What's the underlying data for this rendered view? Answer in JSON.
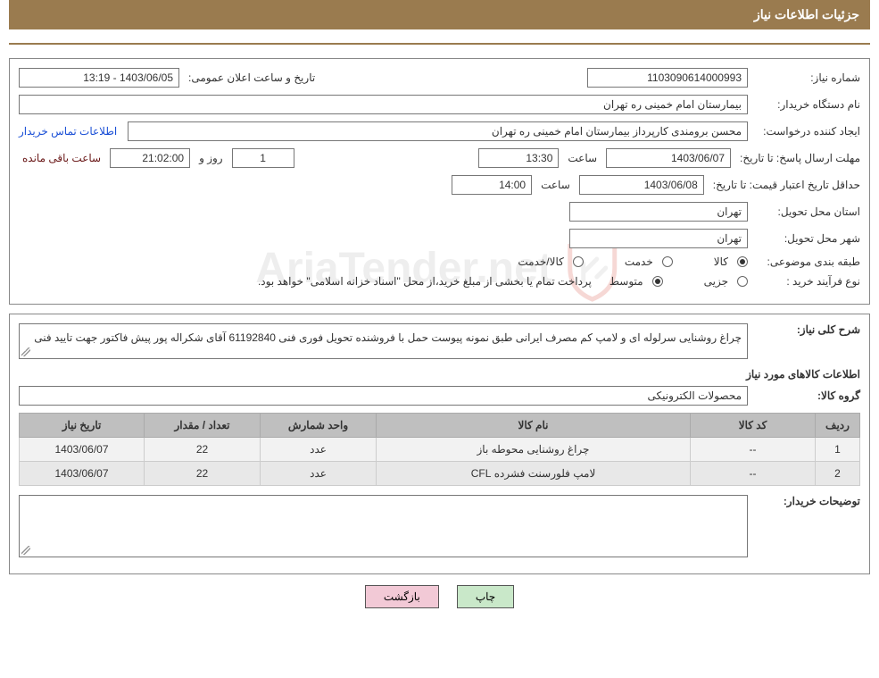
{
  "header": {
    "title": "جزئیات اطلاعات نیاز"
  },
  "watermark": "AriaTender.net",
  "fields": {
    "need_number_label": "شماره نیاز:",
    "need_number": "1103090614000993",
    "announce_label": "تاریخ و ساعت اعلان عمومی:",
    "announce_value": "1403/06/05 - 13:19",
    "buyer_org_label": "نام دستگاه خریدار:",
    "buyer_org": "بیمارستان امام خمینی ره  تهران",
    "requester_label": "ایجاد کننده درخواست:",
    "requester": "محسن برومندی کارپرداز بیمارستان امام خمینی ره  تهران",
    "contact_link": "اطلاعات تماس خریدار",
    "deadline_label": "مهلت ارسال پاسخ:",
    "until_date_label": "تا تاریخ:",
    "deadline_date": "1403/06/07",
    "time_label": "ساعت",
    "deadline_time": "13:30",
    "days_label": "روز و",
    "days_value": "1",
    "countdown_time": "21:02:00",
    "remaining_label": "ساعت باقی مانده",
    "validity_label": "حداقل تاریخ اعتبار قیمت:",
    "validity_date": "1403/06/08",
    "validity_time": "14:00",
    "province_label": "استان محل تحویل:",
    "province": "تهران",
    "city_label": "شهر محل تحویل:",
    "city": "تهران",
    "category_label": "طبقه بندی موضوعی:",
    "cat_goods": "کالا",
    "cat_service": "خدمت",
    "cat_goods_service": "کالا/خدمت",
    "purchase_type_label": "نوع فرآیند خرید :",
    "pt_partial": "جزیی",
    "pt_medium": "متوسط",
    "payment_note": "پرداخت تمام یا بخشی از مبلغ خرید،از محل \"اسناد خزانه اسلامی\" خواهد بود."
  },
  "desc": {
    "overall_label": "شرح کلی نیاز:",
    "overall_text": "چراغ روشنایی  سرلوله ای  و لامپ کم مصرف ایرانی طبق نمونه پیوست حمل با فروشنده تحویل فوری فنی 61192840 آقای شکراله پور پیش فاکتور جهت تایید فنی",
    "items_heading": "اطلاعات کالاهای مورد نیاز",
    "group_label": "گروه کالا:",
    "group_value": "محصولات الکترونیکی",
    "buyer_notes_label": "توضیحات خریدار:"
  },
  "table": {
    "columns": [
      "ردیف",
      "کد کالا",
      "نام کالا",
      "واحد شمارش",
      "تعداد / مقدار",
      "تاریخ نیاز"
    ],
    "rows": [
      [
        "1",
        "--",
        "چراغ روشنایی محوطه باز",
        "عدد",
        "22",
        "1403/06/07"
      ],
      [
        "2",
        "--",
        "لامپ فلورسنت فشرده CFL",
        "عدد",
        "22",
        "1403/06/07"
      ]
    ],
    "col_widths": [
      "50px",
      "140px",
      "auto",
      "130px",
      "130px",
      "140px"
    ]
  },
  "buttons": {
    "print": "چاپ",
    "back": "بازگشت"
  }
}
